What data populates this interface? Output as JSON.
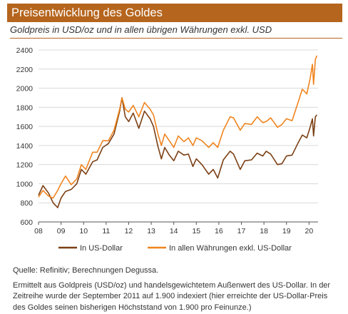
{
  "header": {
    "title": "Preisentwicklung des Goldes",
    "subtitle": "Goldpreis in USD/oz und in allen übrigen Währungen exkl. USD"
  },
  "notes": {
    "source": "Quelle: Refinitiv; Berechnungen Degussa.",
    "description": "Ermittelt aus Goldpreis (USD/oz) und handelsgewichtetem Außenwert des US-Dollar. In der Zeitreihe wurde der September 2011 auf 1.900 indexiert (hier erreichte der US-Dollar-Preis des Goldes seinen bisherigen Höchststand von 1.900 pro Feinunze.)"
  },
  "colors": {
    "usd": "#7b3f14",
    "other": "#f0841e",
    "grid": "#d9d9d9",
    "title_bg": "#b5651d"
  },
  "chart_data": {
    "type": "line",
    "xlim": [
      2008,
      2020.4
    ],
    "ylim": [
      600,
      2400
    ],
    "x_ticks": [
      {
        "value": 2008,
        "label": "08"
      },
      {
        "value": 2009,
        "label": "09"
      },
      {
        "value": 2010,
        "label": "10"
      },
      {
        "value": 2011,
        "label": "11"
      },
      {
        "value": 2012,
        "label": "12"
      },
      {
        "value": 2013,
        "label": "13"
      },
      {
        "value": 2014,
        "label": "14"
      },
      {
        "value": 2015,
        "label": "15"
      },
      {
        "value": 2016,
        "label": "16"
      },
      {
        "value": 2017,
        "label": "17"
      },
      {
        "value": 2018,
        "label": "18"
      },
      {
        "value": 2019,
        "label": "19"
      },
      {
        "value": 2020,
        "label": "20"
      }
    ],
    "y_ticks": [
      600,
      800,
      1000,
      1200,
      1400,
      1600,
      1800,
      2000,
      2200,
      2400
    ],
    "grid": "horizontal",
    "legend_position": "bottom",
    "series": [
      {
        "name": "In US-Dollar",
        "color": "#7b3f14",
        "points": [
          [
            2008.0,
            880
          ],
          [
            2008.2,
            980
          ],
          [
            2008.45,
            900
          ],
          [
            2008.65,
            800
          ],
          [
            2008.85,
            750
          ],
          [
            2009.0,
            850
          ],
          [
            2009.2,
            920
          ],
          [
            2009.45,
            940
          ],
          [
            2009.7,
            1000
          ],
          [
            2009.9,
            1150
          ],
          [
            2010.1,
            1100
          ],
          [
            2010.4,
            1230
          ],
          [
            2010.6,
            1250
          ],
          [
            2010.85,
            1380
          ],
          [
            2011.1,
            1420
          ],
          [
            2011.35,
            1520
          ],
          [
            2011.6,
            1760
          ],
          [
            2011.7,
            1900
          ],
          [
            2011.85,
            1700
          ],
          [
            2012.0,
            1650
          ],
          [
            2012.2,
            1740
          ],
          [
            2012.45,
            1580
          ],
          [
            2012.7,
            1760
          ],
          [
            2012.95,
            1680
          ],
          [
            2013.1,
            1600
          ],
          [
            2013.3,
            1390
          ],
          [
            2013.45,
            1260
          ],
          [
            2013.6,
            1380
          ],
          [
            2013.8,
            1300
          ],
          [
            2014.0,
            1240
          ],
          [
            2014.2,
            1340
          ],
          [
            2014.45,
            1300
          ],
          [
            2014.65,
            1310
          ],
          [
            2014.85,
            1180
          ],
          [
            2015.0,
            1260
          ],
          [
            2015.25,
            1200
          ],
          [
            2015.55,
            1100
          ],
          [
            2015.75,
            1150
          ],
          [
            2015.95,
            1060
          ],
          [
            2016.2,
            1250
          ],
          [
            2016.5,
            1340
          ],
          [
            2016.65,
            1310
          ],
          [
            2016.95,
            1150
          ],
          [
            2017.15,
            1240
          ],
          [
            2017.45,
            1250
          ],
          [
            2017.7,
            1320
          ],
          [
            2017.95,
            1290
          ],
          [
            2018.1,
            1340
          ],
          [
            2018.3,
            1310
          ],
          [
            2018.6,
            1200
          ],
          [
            2018.8,
            1210
          ],
          [
            2019.0,
            1290
          ],
          [
            2019.25,
            1300
          ],
          [
            2019.5,
            1420
          ],
          [
            2019.7,
            1510
          ],
          [
            2019.9,
            1480
          ],
          [
            2020.05,
            1590
          ],
          [
            2020.15,
            1680
          ],
          [
            2020.2,
            1500
          ],
          [
            2020.28,
            1700
          ],
          [
            2020.35,
            1720
          ]
        ]
      },
      {
        "name": "In allen Währungen exkl. US-Dollar",
        "color": "#f0841e",
        "points": [
          [
            2008.0,
            860
          ],
          [
            2008.2,
            930
          ],
          [
            2008.45,
            870
          ],
          [
            2008.65,
            850
          ],
          [
            2008.85,
            930
          ],
          [
            2009.0,
            1000
          ],
          [
            2009.2,
            1080
          ],
          [
            2009.45,
            990
          ],
          [
            2009.7,
            1050
          ],
          [
            2009.9,
            1200
          ],
          [
            2010.1,
            1150
          ],
          [
            2010.4,
            1330
          ],
          [
            2010.6,
            1330
          ],
          [
            2010.85,
            1450
          ],
          [
            2011.1,
            1450
          ],
          [
            2011.35,
            1560
          ],
          [
            2011.6,
            1780
          ],
          [
            2011.7,
            1900
          ],
          [
            2011.85,
            1780
          ],
          [
            2012.0,
            1750
          ],
          [
            2012.2,
            1820
          ],
          [
            2012.45,
            1700
          ],
          [
            2012.7,
            1850
          ],
          [
            2012.95,
            1780
          ],
          [
            2013.1,
            1720
          ],
          [
            2013.3,
            1520
          ],
          [
            2013.45,
            1400
          ],
          [
            2013.6,
            1520
          ],
          [
            2013.8,
            1450
          ],
          [
            2014.0,
            1380
          ],
          [
            2014.2,
            1500
          ],
          [
            2014.45,
            1440
          ],
          [
            2014.65,
            1480
          ],
          [
            2014.85,
            1400
          ],
          [
            2015.0,
            1480
          ],
          [
            2015.25,
            1450
          ],
          [
            2015.55,
            1380
          ],
          [
            2015.75,
            1430
          ],
          [
            2015.95,
            1380
          ],
          [
            2016.2,
            1560
          ],
          [
            2016.5,
            1700
          ],
          [
            2016.65,
            1690
          ],
          [
            2016.95,
            1560
          ],
          [
            2017.15,
            1630
          ],
          [
            2017.45,
            1620
          ],
          [
            2017.7,
            1700
          ],
          [
            2017.95,
            1640
          ],
          [
            2018.1,
            1650
          ],
          [
            2018.3,
            1690
          ],
          [
            2018.6,
            1590
          ],
          [
            2018.8,
            1620
          ],
          [
            2019.0,
            1680
          ],
          [
            2019.25,
            1660
          ],
          [
            2019.5,
            1840
          ],
          [
            2019.7,
            1990
          ],
          [
            2019.9,
            1940
          ],
          [
            2020.05,
            2100
          ],
          [
            2020.15,
            2250
          ],
          [
            2020.2,
            2040
          ],
          [
            2020.28,
            2300
          ],
          [
            2020.35,
            2340
          ]
        ]
      }
    ]
  }
}
